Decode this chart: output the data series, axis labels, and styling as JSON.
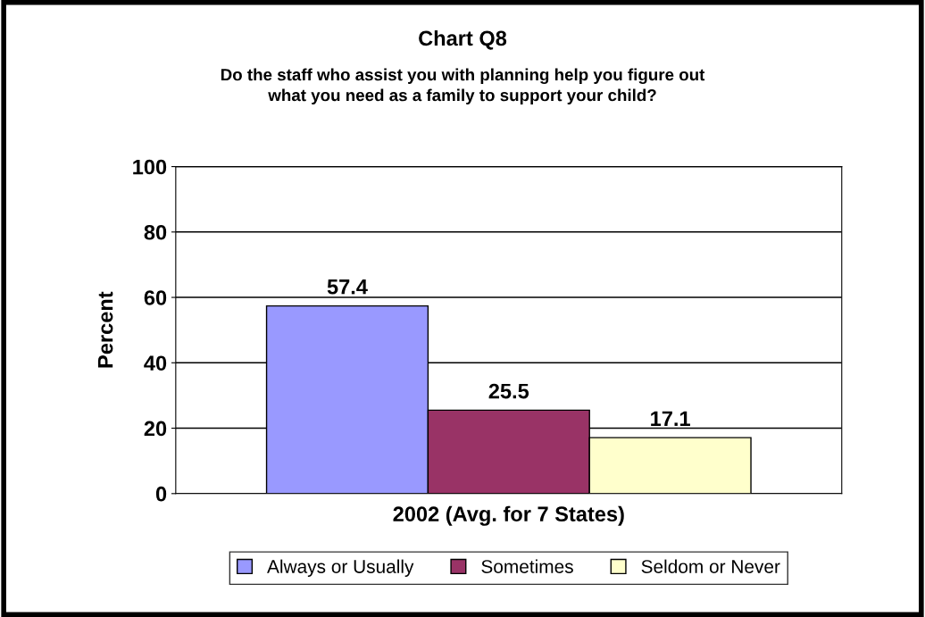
{
  "chart_data": {
    "type": "bar",
    "title": "Chart Q8",
    "subtitle": "Do the staff who assist you with planning help you figure out\nwhat you need as a family to support your child?",
    "ylabel": "Percent",
    "categories": [
      "2002 (Avg. for 7 States)"
    ],
    "series": [
      {
        "name": "Always or Usually",
        "color": "#9999ff",
        "values": [
          57.4
        ]
      },
      {
        "name": "Sometimes",
        "color": "#993366",
        "values": [
          25.5
        ]
      },
      {
        "name": "Seldom or Never",
        "color": "#ffffcc",
        "values": [
          17.1
        ]
      }
    ],
    "ylim": [
      0,
      100
    ],
    "yticks": [
      0,
      20,
      40,
      60,
      80,
      100
    ],
    "grid": "y",
    "legend": "bottom",
    "data_labels": true
  }
}
